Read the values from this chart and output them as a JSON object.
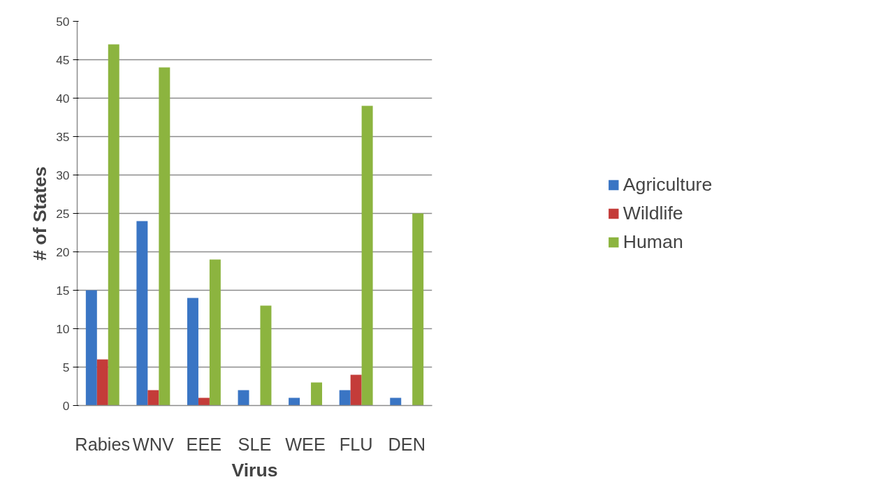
{
  "chart_data": {
    "type": "bar",
    "xlabel": "Virus",
    "ylabel": "# of States",
    "categories": [
      "Rabies",
      "WNV",
      "EEE",
      "SLE",
      "WEE",
      "FLU",
      "DEN"
    ],
    "series": [
      {
        "name": "Agriculture",
        "color": "#3a75c4",
        "values": [
          15,
          24,
          14,
          2,
          1,
          2,
          1
        ]
      },
      {
        "name": "Wildlife",
        "color": "#c43c39",
        "values": [
          6,
          2,
          1,
          0,
          0,
          4,
          0
        ]
      },
      {
        "name": "Human",
        "color": "#8cb43f",
        "values": [
          47,
          44,
          19,
          13,
          3,
          39,
          25
        ]
      }
    ],
    "ylim": [
      0,
      50
    ],
    "yticks": [
      0,
      5,
      10,
      15,
      20,
      25,
      30,
      35,
      40,
      45,
      50
    ],
    "grid": "y",
    "legend": "right"
  }
}
